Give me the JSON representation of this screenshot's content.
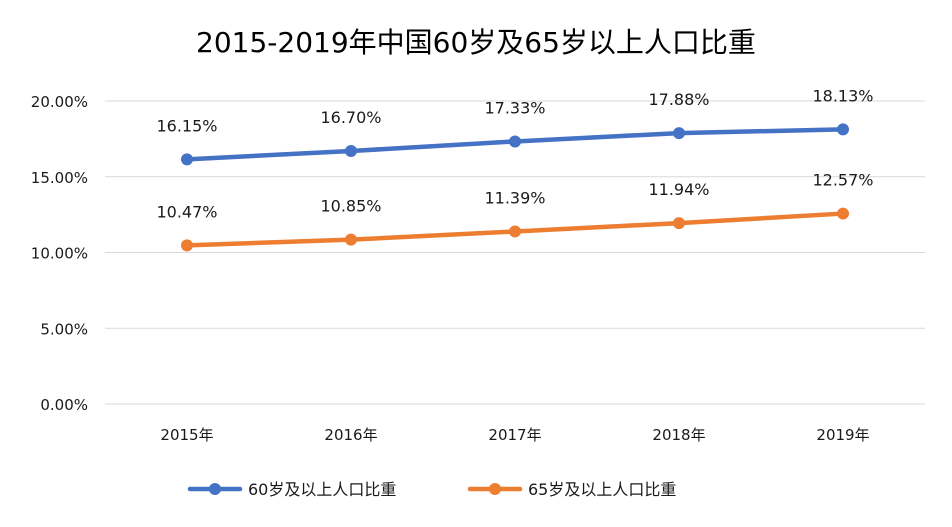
{
  "chart_data": {
    "type": "line",
    "title": "2015-2019年中国60岁及65岁以上人口比重",
    "xlabel": "",
    "ylabel": "",
    "categories": [
      "2015年",
      "2016年",
      "2017年",
      "2018年",
      "2019年"
    ],
    "ylim": [
      0,
      20
    ],
    "yticks": [
      0,
      5,
      10,
      15,
      20
    ],
    "ytick_labels": [
      "0.00%",
      "5.00%",
      "10.00%",
      "15.00%",
      "20.00%"
    ],
    "grid": true,
    "legend_position": "bottom",
    "series": [
      {
        "name": "60岁及以上人口比重",
        "color": "#4472C4",
        "values": [
          16.15,
          16.7,
          17.33,
          17.88,
          18.13
        ],
        "labels": [
          "16.15%",
          "16.70%",
          "17.33%",
          "17.88%",
          "18.13%"
        ]
      },
      {
        "name": "65岁及以上人口比重",
        "color": "#ED7D31",
        "values": [
          10.47,
          10.85,
          11.39,
          11.94,
          12.57
        ],
        "labels": [
          "10.47%",
          "10.85%",
          "11.39%",
          "11.94%",
          "12.57%"
        ]
      }
    ]
  }
}
